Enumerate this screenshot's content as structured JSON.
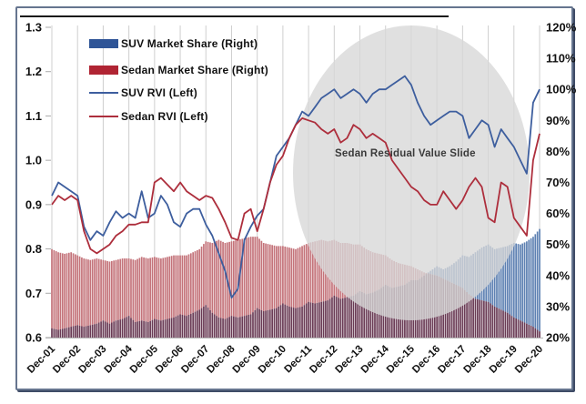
{
  "chart_data": {
    "type": "combo-bar-line",
    "title": "",
    "annotation": {
      "text": "Sedan Residual Value Slide",
      "highlight_shape": "ellipse",
      "highlight_color": "#d7d7d7"
    },
    "left_axis": {
      "side": "left",
      "min": 0.6,
      "max": 1.3,
      "ticks": [
        "1.3",
        "1.2",
        "1.1",
        "1.0",
        "0.9",
        "0.8",
        "0.7",
        "0.6"
      ],
      "tick_values": [
        1.3,
        1.2,
        1.1,
        1.0,
        0.9,
        0.8,
        0.7,
        0.6
      ]
    },
    "right_axis": {
      "side": "right",
      "min": 20,
      "max": 120,
      "ticks": [
        "120%",
        "110%",
        "100%",
        "90%",
        "80%",
        "70%",
        "60%",
        "50%",
        "40%",
        "30%",
        "20%"
      ],
      "tick_values": [
        120,
        110,
        100,
        90,
        80,
        70,
        60,
        50,
        40,
        30,
        20
      ]
    },
    "x_tick_labels": [
      "Dec-01",
      "Dec-02",
      "Dec-03",
      "Dec-04",
      "Dec-05",
      "Dec-06",
      "Dec-07",
      "Dec-08",
      "Dec-09",
      "Dec-10",
      "Dec-11",
      "Dec-12",
      "Dec-13",
      "Dec-14",
      "Dec-15",
      "Dec-16",
      "Dec-17",
      "Dec-18",
      "Dec-19",
      "Dec-20"
    ],
    "x": [
      "Dec-01",
      "Mar-02",
      "Jun-02",
      "Sep-02",
      "Dec-02",
      "Mar-03",
      "Jun-03",
      "Sep-03",
      "Dec-03",
      "Mar-04",
      "Jun-04",
      "Sep-04",
      "Dec-04",
      "Mar-05",
      "Jun-05",
      "Sep-05",
      "Dec-05",
      "Mar-06",
      "Jun-06",
      "Sep-06",
      "Dec-06",
      "Mar-07",
      "Jun-07",
      "Sep-07",
      "Dec-07",
      "Mar-08",
      "Jun-08",
      "Sep-08",
      "Dec-08",
      "Mar-09",
      "Jun-09",
      "Sep-09",
      "Dec-09",
      "Mar-10",
      "Jun-10",
      "Sep-10",
      "Dec-10",
      "Mar-11",
      "Jun-11",
      "Sep-11",
      "Dec-11",
      "Mar-12",
      "Jun-12",
      "Sep-12",
      "Dec-12",
      "Mar-13",
      "Jun-13",
      "Sep-13",
      "Dec-13",
      "Mar-14",
      "Jun-14",
      "Sep-14",
      "Dec-14",
      "Mar-15",
      "Jun-15",
      "Sep-15",
      "Dec-15",
      "Mar-16",
      "Jun-16",
      "Sep-16",
      "Dec-16",
      "Mar-17",
      "Jun-17",
      "Sep-17",
      "Dec-17",
      "Mar-18",
      "Jun-18",
      "Sep-18",
      "Dec-18",
      "Mar-19",
      "Jun-19",
      "Sep-19",
      "Dec-19",
      "Mar-20",
      "Jun-20",
      "Sep-20",
      "Dec-20"
    ],
    "series": [
      {
        "name": "SUV Market Share (Right)",
        "type": "bar",
        "axis": "right",
        "legend_color": "#2f5597",
        "bar_color": "#5d80b2",
        "values": [
          23.0,
          22.5,
          23.0,
          23.5,
          24.0,
          23.5,
          24.0,
          24.5,
          25.5,
          24.5,
          25.5,
          26.0,
          27.0,
          25.0,
          25.5,
          25.0,
          26.0,
          25.5,
          26.0,
          26.5,
          27.5,
          27.0,
          28.0,
          29.0,
          30.5,
          28.0,
          26.5,
          26.0,
          27.0,
          26.5,
          27.0,
          27.5,
          29.5,
          28.5,
          29.0,
          29.5,
          31.0,
          30.0,
          29.5,
          30.0,
          31.5,
          31.0,
          31.5,
          32.0,
          33.5,
          32.5,
          33.0,
          33.5,
          35.0,
          34.0,
          34.5,
          35.5,
          37.0,
          36.0,
          36.5,
          37.0,
          38.5,
          38.5,
          40.0,
          41.5,
          43.0,
          42.0,
          43.0,
          44.5,
          46.5,
          46.0,
          47.5,
          49.0,
          50.0,
          48.5,
          49.0,
          49.5,
          50.5,
          50.0,
          51.0,
          52.5,
          55.0
        ]
      },
      {
        "name": "Sedan Market Share (Right)",
        "type": "bar",
        "axis": "right",
        "legend_color": "#b02433",
        "bar_color": "#c4737a",
        "values": [
          48.5,
          47.5,
          47.0,
          47.5,
          46.5,
          45.5,
          45.0,
          45.5,
          45.0,
          44.5,
          45.0,
          45.5,
          45.5,
          45.0,
          46.0,
          45.5,
          46.0,
          45.5,
          46.0,
          46.5,
          46.5,
          46.5,
          47.5,
          48.5,
          51.0,
          50.5,
          51.5,
          50.5,
          51.0,
          51.5,
          52.0,
          52.5,
          52.5,
          50.5,
          50.0,
          49.5,
          49.5,
          49.0,
          48.5,
          49.5,
          50.5,
          51.0,
          51.5,
          51.0,
          51.5,
          50.5,
          50.5,
          50.0,
          50.0,
          48.5,
          47.5,
          47.0,
          46.5,
          45.0,
          44.0,
          43.5,
          43.0,
          42.0,
          41.0,
          40.5,
          40.0,
          39.0,
          38.0,
          37.0,
          36.0,
          34.0,
          32.5,
          32.0,
          31.5,
          30.0,
          29.0,
          28.0,
          26.5,
          25.5,
          24.5,
          23.5,
          22.0
        ]
      },
      {
        "name": "SUV RVI (Left)",
        "type": "line",
        "axis": "left",
        "legend_color": "#3d5e9e",
        "line_color": "#3d5e9e",
        "values": [
          0.92,
          0.95,
          0.94,
          0.93,
          0.92,
          0.85,
          0.82,
          0.84,
          0.83,
          0.86,
          0.885,
          0.87,
          0.88,
          0.87,
          0.93,
          0.87,
          0.88,
          0.92,
          0.9,
          0.86,
          0.85,
          0.88,
          0.89,
          0.89,
          0.855,
          0.83,
          0.79,
          0.75,
          0.69,
          0.71,
          0.82,
          0.85,
          0.875,
          0.89,
          0.95,
          1.01,
          1.03,
          1.05,
          1.08,
          1.11,
          1.1,
          1.12,
          1.14,
          1.15,
          1.16,
          1.14,
          1.15,
          1.16,
          1.15,
          1.13,
          1.15,
          1.16,
          1.16,
          1.17,
          1.18,
          1.19,
          1.17,
          1.13,
          1.1,
          1.08,
          1.09,
          1.1,
          1.11,
          1.11,
          1.1,
          1.05,
          1.07,
          1.09,
          1.08,
          1.03,
          1.07,
          1.05,
          1.03,
          1.0,
          0.97,
          1.13,
          1.16
        ]
      },
      {
        "name": "Sedan RVI (Left)",
        "type": "line",
        "axis": "left",
        "legend_color": "#ad2e3c",
        "line_color": "#ad2e3c",
        "values": [
          0.9,
          0.92,
          0.91,
          0.92,
          0.91,
          0.84,
          0.8,
          0.79,
          0.8,
          0.81,
          0.83,
          0.84,
          0.855,
          0.855,
          0.86,
          0.86,
          0.95,
          0.96,
          0.945,
          0.93,
          0.95,
          0.93,
          0.92,
          0.91,
          0.92,
          0.915,
          0.89,
          0.86,
          0.825,
          0.82,
          0.88,
          0.89,
          0.84,
          0.89,
          0.95,
          0.99,
          1.01,
          1.05,
          1.08,
          1.095,
          1.09,
          1.085,
          1.07,
          1.06,
          1.07,
          1.04,
          1.05,
          1.08,
          1.07,
          1.05,
          1.06,
          1.05,
          1.04,
          1.0,
          0.98,
          0.96,
          0.94,
          0.93,
          0.91,
          0.9,
          0.9,
          0.93,
          0.91,
          0.89,
          0.91,
          0.94,
          0.96,
          0.94,
          0.87,
          0.86,
          0.95,
          0.94,
          0.87,
          0.85,
          0.83,
          1.0,
          1.06
        ]
      }
    ],
    "colors": {
      "bar_overlap": "#6a3b55",
      "gridline": "#cfcfcf",
      "axis_text": "#111111",
      "top_rule": "#1a1a1a",
      "frame_border": "#66758f"
    },
    "layout_hints": {
      "grid": "vertical-yearly",
      "legend_position": "top-left-inside",
      "bars_baseline": "20%"
    }
  }
}
